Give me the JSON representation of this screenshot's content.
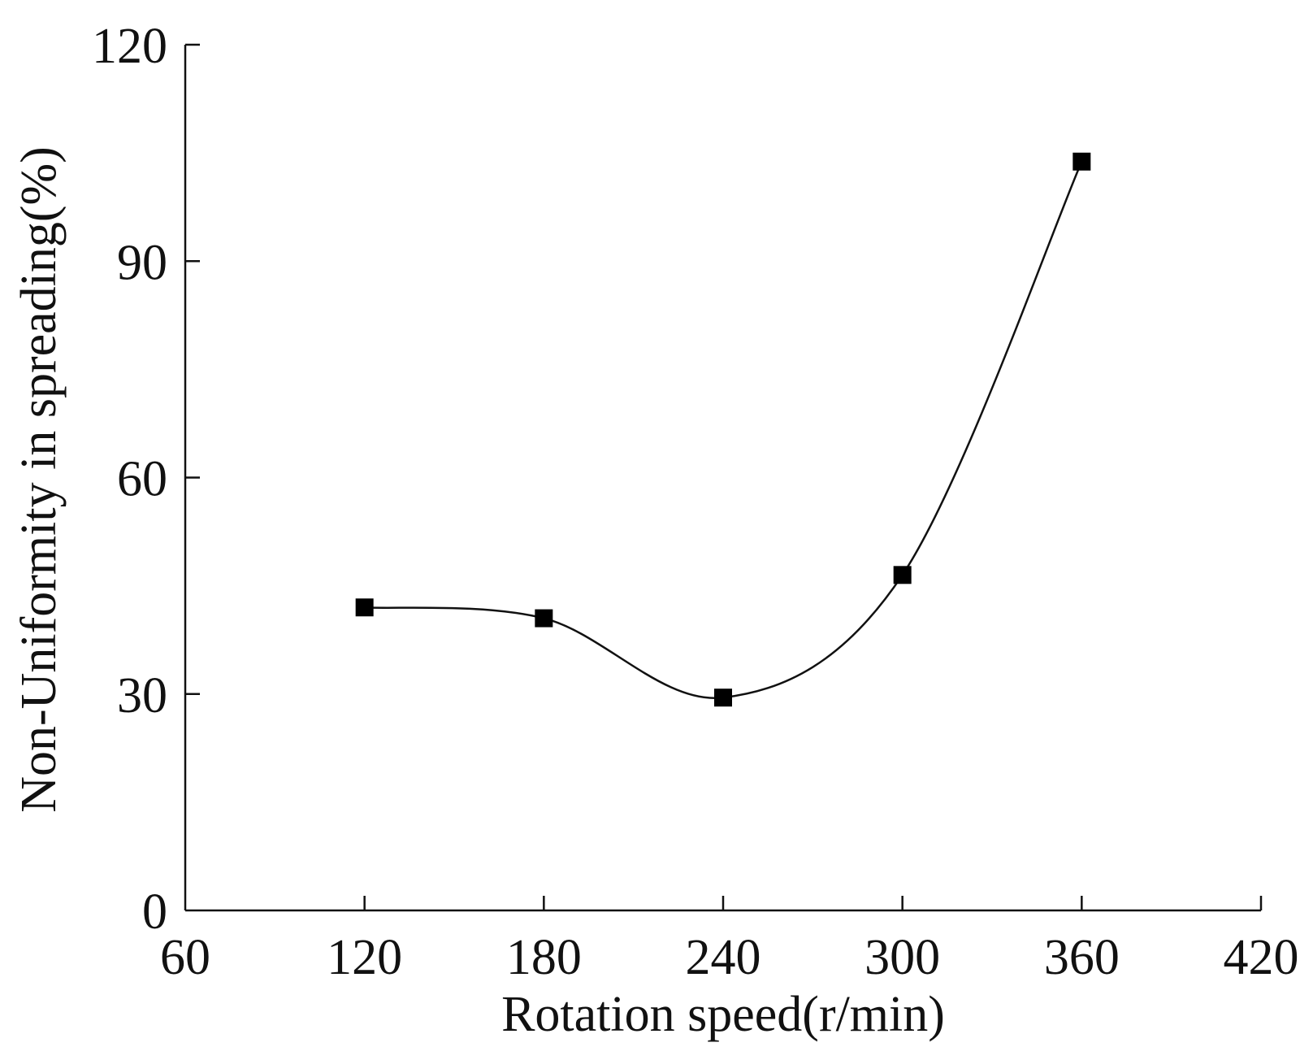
{
  "chart_data": {
    "type": "line",
    "title": "",
    "xlabel": "Rotation speed(r/min)",
    "ylabel": "Non-Uniformity in spreading(%)",
    "xlim": [
      60,
      420
    ],
    "ylim": [
      0,
      120
    ],
    "xticks": [
      60,
      120,
      180,
      240,
      300,
      360,
      420
    ],
    "yticks": [
      0,
      30,
      60,
      90,
      120
    ],
    "grid": false,
    "smooth": true,
    "series": [
      {
        "name": "Non-Uniformity",
        "marker": "square",
        "color": "#000000",
        "x": [
          120,
          180,
          240,
          300,
          360
        ],
        "y": [
          42.0,
          40.5,
          29.5,
          46.5,
          103.8
        ]
      }
    ]
  }
}
